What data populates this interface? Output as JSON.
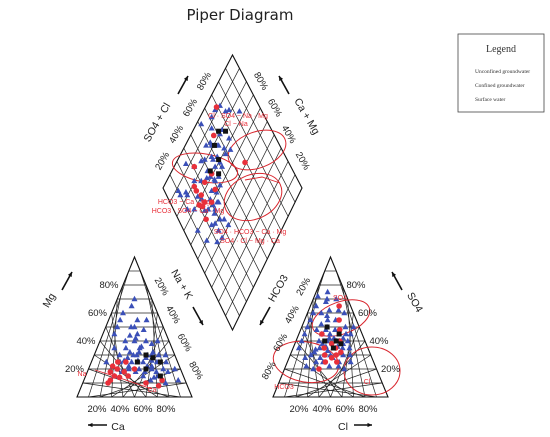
{
  "chart_data": {
    "type": "scatter",
    "title": "Piper Diagram",
    "legend": {
      "title": "Legend",
      "placement": "top-right",
      "entries": [
        {
          "label": "Unconfined groundwater",
          "marker": "triangle",
          "color": "#3a4fb8"
        },
        {
          "label": "Confined groundwater",
          "marker": "circle",
          "color": "#e8303a"
        },
        {
          "label": "Surface water",
          "marker": "square",
          "color": "#111111"
        }
      ]
    },
    "cation_triangle": {
      "tick_labels": [
        "20%",
        "40%",
        "60%",
        "80%"
      ],
      "axes": {
        "bottom": "Ca",
        "left": "Mg",
        "right": "Na + K"
      },
      "zone_labels": [
        "Na",
        "Ca"
      ]
    },
    "anion_triangle": {
      "tick_labels": [
        "20%",
        "40%",
        "60%",
        "80%"
      ],
      "axes": {
        "bottom": "Cl",
        "left": "HCO3",
        "right": "SO4"
      },
      "zone_labels": [
        "SO4",
        "HCO3",
        "Cl"
      ]
    },
    "diamond": {
      "tick_labels": [
        "20%",
        "40%",
        "60%",
        "80%"
      ],
      "axes": {
        "upper_left": "SO4 + Cl",
        "upper_right": "Ca + Mg"
      },
      "zone_labels": [
        "Cl · SO4 − Na · Mg",
        "Cl − Na",
        "HCO3 − Ca · Mg",
        "HCO3 · SO4 − Ca · Mg",
        "SO4 · HCO3 − Ca · Mg",
        "SO4 · Cl − Mg · Ca"
      ]
    },
    "series": [
      {
        "name": "Unconfined groundwater",
        "cation": [
          [
            30,
            25,
            45
          ],
          [
            25,
            20,
            55
          ],
          [
            35,
            25,
            40
          ],
          [
            20,
            30,
            50
          ],
          [
            28,
            35,
            37
          ],
          [
            40,
            25,
            35
          ],
          [
            22,
            15,
            63
          ],
          [
            18,
            25,
            57
          ],
          [
            45,
            20,
            35
          ],
          [
            33,
            30,
            37
          ],
          [
            26,
            28,
            46
          ],
          [
            38,
            32,
            30
          ],
          [
            15,
            20,
            65
          ],
          [
            30,
            40,
            30
          ],
          [
            50,
            25,
            25
          ],
          [
            24,
            22,
            54
          ],
          [
            42,
            28,
            30
          ],
          [
            20,
            40,
            40
          ],
          [
            35,
            15,
            50
          ],
          [
            12,
            18,
            70
          ],
          [
            28,
            50,
            22
          ],
          [
            55,
            20,
            25
          ],
          [
            30,
            32,
            38
          ],
          [
            22,
            26,
            52
          ],
          [
            40,
            35,
            25
          ],
          [
            18,
            10,
            72
          ],
          [
            36,
            20,
            44
          ],
          [
            25,
            45,
            30
          ],
          [
            48,
            30,
            22
          ],
          [
            32,
            18,
            50
          ],
          [
            20,
            55,
            25
          ],
          [
            60,
            15,
            25
          ],
          [
            14,
            30,
            56
          ],
          [
            26,
            36,
            38
          ],
          [
            44,
            22,
            34
          ],
          [
            30,
            12,
            58
          ],
          [
            38,
            40,
            22
          ],
          [
            16,
            38,
            46
          ],
          [
            52,
            18,
            30
          ],
          [
            24,
            30,
            46
          ],
          [
            34,
            26,
            40
          ],
          [
            28,
            22,
            50
          ],
          [
            46,
            26,
            28
          ],
          [
            18,
            32,
            50
          ],
          [
            40,
            18,
            42
          ],
          [
            10,
            25,
            65
          ],
          [
            32,
            44,
            24
          ],
          [
            58,
            22,
            20
          ],
          [
            22,
            18,
            60
          ],
          [
            36,
            30,
            34
          ],
          [
            26,
            14,
            60
          ],
          [
            30,
            60,
            10
          ],
          [
            20,
            65,
            15
          ],
          [
            15,
            70,
            15
          ],
          [
            45,
            45,
            10
          ],
          [
            35,
            55,
            10
          ],
          [
            25,
            50,
            25
          ],
          [
            40,
            50,
            10
          ],
          [
            10,
            40,
            50
          ],
          [
            8,
            30,
            62
          ],
          [
            50,
            35,
            15
          ],
          [
            62,
            25,
            13
          ],
          [
            18,
            48,
            34
          ],
          [
            28,
            42,
            30
          ],
          [
            12,
            55,
            33
          ],
          [
            5,
            20,
            75
          ],
          [
            6,
            12,
            82
          ]
        ],
        "anion": [
          [
            30,
            35,
            35
          ],
          [
            25,
            40,
            35
          ],
          [
            35,
            30,
            35
          ],
          [
            20,
            45,
            35
          ],
          [
            40,
            30,
            30
          ],
          [
            28,
            50,
            22
          ],
          [
            22,
            35,
            43
          ],
          [
            33,
            40,
            27
          ],
          [
            45,
            28,
            27
          ],
          [
            18,
            55,
            27
          ],
          [
            26,
            42,
            32
          ],
          [
            38,
            38,
            24
          ],
          [
            30,
            48,
            22
          ],
          [
            15,
            40,
            45
          ],
          [
            50,
            25,
            25
          ],
          [
            24,
            30,
            46
          ],
          [
            42,
            35,
            23
          ],
          [
            20,
            38,
            42
          ],
          [
            35,
            45,
            20
          ],
          [
            12,
            50,
            38
          ],
          [
            28,
            60,
            12
          ],
          [
            55,
            20,
            25
          ],
          [
            30,
            25,
            45
          ],
          [
            22,
            48,
            30
          ],
          [
            40,
            40,
            20
          ],
          [
            18,
            30,
            52
          ],
          [
            36,
            33,
            31
          ],
          [
            25,
            55,
            20
          ],
          [
            48,
            32,
            20
          ],
          [
            32,
            22,
            46
          ],
          [
            20,
            62,
            18
          ],
          [
            60,
            22,
            18
          ],
          [
            14,
            45,
            41
          ],
          [
            26,
            36,
            38
          ],
          [
            44,
            25,
            31
          ],
          [
            30,
            42,
            28
          ],
          [
            38,
            48,
            14
          ],
          [
            16,
            35,
            49
          ],
          [
            52,
            30,
            18
          ],
          [
            24,
            58,
            18
          ],
          [
            34,
            28,
            38
          ],
          [
            28,
            45,
            27
          ],
          [
            46,
            34,
            20
          ],
          [
            18,
            42,
            40
          ],
          [
            40,
            22,
            38
          ],
          [
            10,
            45,
            45
          ],
          [
            32,
            52,
            16
          ],
          [
            58,
            28,
            14
          ],
          [
            22,
            40,
            38
          ],
          [
            36,
            36,
            28
          ],
          [
            10,
            70,
            20
          ],
          [
            15,
            75,
            10
          ],
          [
            20,
            68,
            12
          ],
          [
            30,
            65,
            5
          ],
          [
            25,
            72,
            3
          ],
          [
            40,
            55,
            5
          ],
          [
            8,
            60,
            32
          ],
          [
            12,
            62,
            26
          ],
          [
            5,
            50,
            45
          ],
          [
            35,
            60,
            5
          ],
          [
            18,
            70,
            12
          ],
          [
            50,
            45,
            5
          ],
          [
            60,
            35,
            5
          ],
          [
            45,
            50,
            5
          ],
          [
            55,
            40,
            5
          ],
          [
            20,
            25,
            55
          ],
          [
            28,
            20,
            52
          ]
        ]
      },
      {
        "name": "Confined groundwater",
        "cation": [
          [
            55,
            20,
            25
          ],
          [
            60,
            15,
            25
          ],
          [
            50,
            18,
            32
          ],
          [
            45,
            25,
            30
          ],
          [
            65,
            12,
            23
          ],
          [
            58,
            22,
            20
          ],
          [
            48,
            15,
            37
          ],
          [
            52,
            25,
            23
          ],
          [
            62,
            18,
            20
          ],
          [
            40,
            20,
            40
          ],
          [
            56,
            14,
            30
          ],
          [
            68,
            10,
            22
          ],
          [
            35,
            10,
            55
          ],
          [
            25,
            8,
            67
          ],
          [
            20,
            12,
            68
          ]
        ],
        "anion": [
          [
            30,
            30,
            40
          ],
          [
            35,
            28,
            37
          ],
          [
            28,
            35,
            37
          ],
          [
            40,
            30,
            30
          ],
          [
            25,
            32,
            43
          ],
          [
            32,
            25,
            43
          ],
          [
            38,
            35,
            27
          ],
          [
            22,
            40,
            38
          ],
          [
            42,
            25,
            33
          ],
          [
            30,
            38,
            32
          ],
          [
            15,
            55,
            30
          ],
          [
            35,
            45,
            20
          ],
          [
            18,
            48,
            34
          ],
          [
            10,
            65,
            25
          ],
          [
            50,
            20,
            30
          ]
        ]
      },
      {
        "name": "Surface water",
        "cation": [
          [
            20,
            15,
            65
          ],
          [
            30,
            20,
            50
          ],
          [
            15,
            25,
            60
          ],
          [
            25,
            30,
            45
          ],
          [
            35,
            25,
            40
          ],
          [
            20,
            28,
            52
          ]
        ],
        "anion": [
          [
            25,
            40,
            35
          ],
          [
            30,
            35,
            35
          ],
          [
            20,
            45,
            35
          ],
          [
            35,
            40,
            25
          ],
          [
            28,
            50,
            22
          ],
          [
            22,
            38,
            40
          ]
        ]
      }
    ]
  }
}
